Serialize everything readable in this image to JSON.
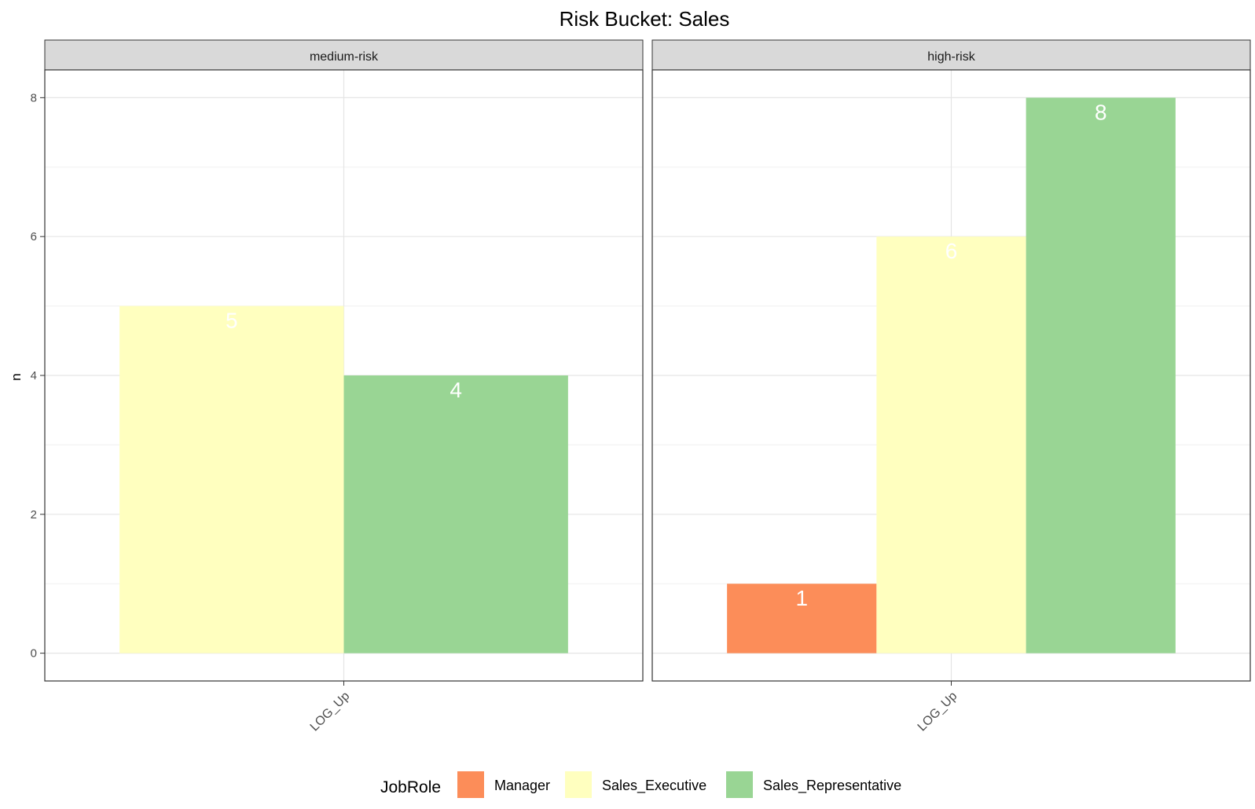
{
  "chart_data": {
    "type": "bar",
    "title": "Risk Bucket: Sales",
    "xlabel": "",
    "ylabel": "n",
    "ylim": [
      -0.4,
      8.4
    ],
    "yticks": [
      0,
      2,
      4,
      6,
      8
    ],
    "grid": true,
    "legend": {
      "title": "JobRole",
      "placement": "bottom",
      "entries": [
        {
          "name": "Manager",
          "color": "#fc8d59"
        },
        {
          "name": "Sales_Executive",
          "color": "#ffffbf"
        },
        {
          "name": "Sales_Representative",
          "color": "#99d594"
        }
      ]
    },
    "panels": [
      {
        "facet": "medium-risk",
        "categories": [
          "LOG_Up"
        ],
        "bars": [
          {
            "series": "Sales_Executive",
            "value": 5,
            "label": "5",
            "color": "#ffffbf"
          },
          {
            "series": "Sales_Representative",
            "value": 4,
            "label": "4",
            "color": "#99d594"
          }
        ]
      },
      {
        "facet": "high-risk",
        "categories": [
          "LOG_Up"
        ],
        "bars": [
          {
            "series": "Manager",
            "value": 1,
            "label": "1",
            "color": "#fc8d59"
          },
          {
            "series": "Sales_Executive",
            "value": 6,
            "label": "6",
            "color": "#ffffbf"
          },
          {
            "series": "Sales_Representative",
            "value": 8,
            "label": "8",
            "color": "#99d594"
          }
        ]
      }
    ]
  }
}
